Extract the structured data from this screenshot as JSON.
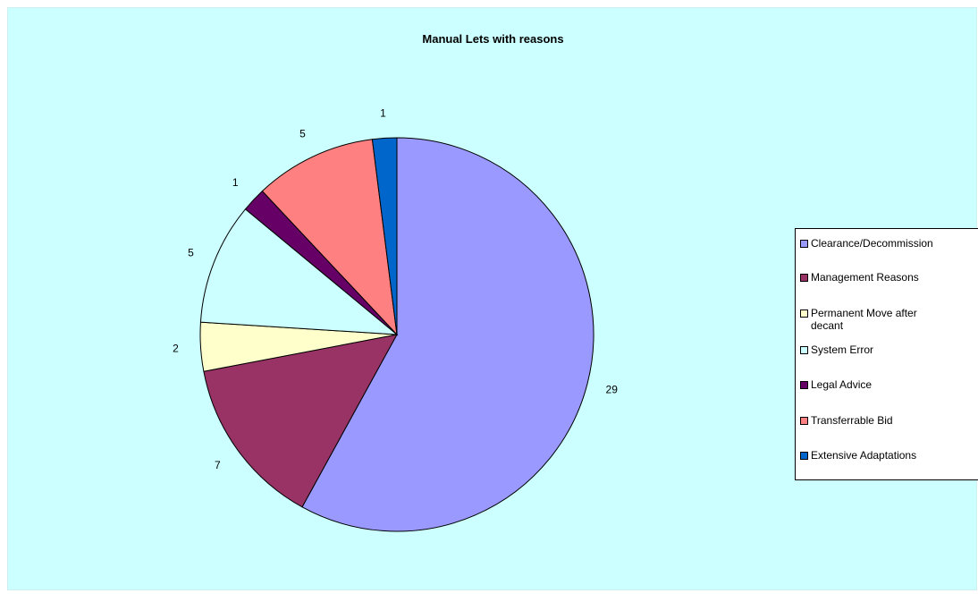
{
  "chart_data": {
    "type": "pie",
    "title": "Manual Lets with reasons",
    "slices": [
      {
        "label": "Clearance/Decommission",
        "value": 29,
        "color": "#9999ff"
      },
      {
        "label": "Management Reasons",
        "value": 7,
        "color": "#993366"
      },
      {
        "label": "Permanent Move after decant",
        "value": 2,
        "color": "#ffffcc"
      },
      {
        "label": "System Error",
        "value": 5,
        "color": "#ccffff"
      },
      {
        "label": "Legal Advice",
        "value": 1,
        "color": "#660066"
      },
      {
        "label": "Transferrable Bid",
        "value": 5,
        "color": "#ff8080"
      },
      {
        "label": "Extensive Adaptations",
        "value": 1,
        "color": "#0066cc"
      }
    ],
    "legend_position": "right",
    "start_angle": "12 o'clock",
    "direction": "clockwise"
  },
  "colors": {
    "plot_background": "#ccffff",
    "page_background": "#ffffff"
  }
}
